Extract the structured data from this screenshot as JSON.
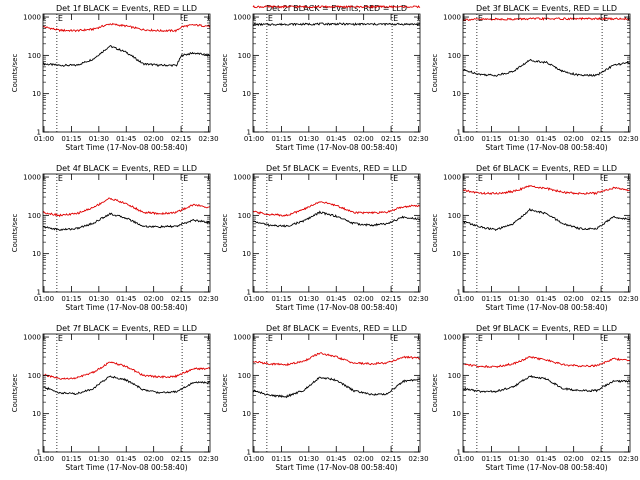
{
  "colors": {
    "events": "#000000",
    "lld": "#e00000",
    "axis": "#000000"
  },
  "chart_data": [
    {
      "type": "line",
      "title": "Det 1f BLACK = Events, RED = LLD",
      "xlabel": "Start Time (17-Nov-08 00:58:40)",
      "ylabel": "Counts/sec",
      "x_ticks": [
        "01:00",
        "01:15",
        "01:30",
        "01:45",
        "02:00",
        "02:15",
        "02:30"
      ],
      "y_ticks": [
        "1",
        "10",
        "100",
        "1000"
      ],
      "xlim": [
        0,
        100
      ],
      "ylim": [
        1,
        1200
      ],
      "yscale": "log",
      "markers": [
        {
          "label": "E",
          "x": 8.3
        },
        {
          "label": "E",
          "x": 83.3
        }
      ],
      "series": [
        {
          "color": "#000000",
          "x": [
            0,
            10,
            20,
            30,
            40,
            50,
            60,
            70,
            80,
            83,
            90,
            100
          ],
          "y": [
            60,
            55,
            55,
            80,
            175,
            120,
            60,
            55,
            55,
            100,
            115,
            100
          ]
        },
        {
          "color": "#e00000",
          "x": [
            0,
            10,
            20,
            30,
            40,
            50,
            60,
            70,
            80,
            83,
            90,
            100
          ],
          "y": [
            560,
            450,
            440,
            480,
            660,
            580,
            470,
            440,
            440,
            560,
            620,
            580
          ]
        }
      ]
    },
    {
      "type": "line",
      "title": "Det 2f BLACK = Events, RED = LLD",
      "xlabel": "Start Time (17-Nov-08 00:58:40)",
      "ylabel": "Counts/sec",
      "x_ticks": [
        "01:00",
        "01:15",
        "01:30",
        "01:45",
        "02:00",
        "02:15",
        "02:30"
      ],
      "y_ticks": [
        "1",
        "10",
        "100",
        "1000"
      ],
      "xlim": [
        0,
        100
      ],
      "ylim": [
        1,
        1200
      ],
      "yscale": "log",
      "markers": [
        {
          "label": "E",
          "x": 8.3
        },
        {
          "label": "E",
          "x": 83.3
        }
      ],
      "series": [
        {
          "color": "#000000",
          "x": [
            0,
            10,
            20,
            30,
            40,
            50,
            60,
            70,
            80,
            90,
            100
          ],
          "y": [
            640,
            640,
            650,
            650,
            660,
            660,
            650,
            650,
            650,
            650,
            650
          ]
        },
        {
          "color": "#e00000",
          "x": [
            0,
            10,
            20,
            30,
            40,
            50,
            60,
            70,
            80,
            90,
            100
          ],
          "y": [
            1850,
            1850,
            1850,
            1850,
            1850,
            1850,
            1850,
            1850,
            1850,
            1850,
            1850
          ]
        }
      ]
    },
    {
      "type": "line",
      "title": "Det 3f BLACK = Events, RED = LLD",
      "xlabel": "Start Time (17-Nov-08 00:58:40)",
      "ylabel": "Counts/sec",
      "x_ticks": [
        "01:00",
        "01:15",
        "01:30",
        "01:45",
        "02:00",
        "02:15",
        "02:30"
      ],
      "y_ticks": [
        "1",
        "10",
        "100",
        "1000"
      ],
      "xlim": [
        0,
        100
      ],
      "ylim": [
        1,
        1200
      ],
      "yscale": "log",
      "markers": [
        {
          "label": "E",
          "x": 8.3
        },
        {
          "label": "E",
          "x": 83.3
        }
      ],
      "series": [
        {
          "color": "#000000",
          "x": [
            0,
            10,
            20,
            30,
            40,
            50,
            60,
            70,
            80,
            90,
            100
          ],
          "y": [
            42,
            32,
            30,
            38,
            75,
            65,
            38,
            30,
            30,
            55,
            65
          ]
        },
        {
          "color": "#e00000",
          "x": [
            0,
            10,
            20,
            30,
            40,
            50,
            60,
            70,
            80,
            90,
            100
          ],
          "y": [
            860,
            870,
            880,
            880,
            900,
            900,
            900,
            900,
            900,
            900,
            900
          ]
        }
      ]
    },
    {
      "type": "line",
      "title": "Det 4f BLACK = Events, RED = LLD",
      "xlabel": "Start Time (17-Nov-08 00:58:40)",
      "ylabel": "Counts/sec",
      "x_ticks": [
        "01:00",
        "01:15",
        "01:30",
        "01:45",
        "02:00",
        "02:15",
        "02:30"
      ],
      "y_ticks": [
        "1",
        "10",
        "100",
        "1000"
      ],
      "xlim": [
        0,
        100
      ],
      "ylim": [
        1,
        1200
      ],
      "yscale": "log",
      "markers": [
        {
          "label": "E",
          "x": 8.3
        },
        {
          "label": "E",
          "x": 83.3
        }
      ],
      "series": [
        {
          "color": "#000000",
          "x": [
            0,
            10,
            20,
            30,
            40,
            50,
            60,
            70,
            80,
            90,
            100
          ],
          "y": [
            50,
            42,
            45,
            62,
            110,
            85,
            52,
            50,
            52,
            75,
            65
          ]
        },
        {
          "color": "#e00000",
          "x": [
            0,
            10,
            20,
            30,
            40,
            50,
            60,
            70,
            80,
            90,
            100
          ],
          "y": [
            120,
            100,
            110,
            160,
            280,
            200,
            120,
            110,
            120,
            190,
            160
          ]
        }
      ]
    },
    {
      "type": "line",
      "title": "Det 5f BLACK = Events, RED = LLD",
      "xlabel": "Start Time (17-Nov-08 00:58:40)",
      "ylabel": "Counts/sec",
      "x_ticks": [
        "01:00",
        "01:15",
        "01:30",
        "01:45",
        "02:00",
        "02:15",
        "02:30"
      ],
      "y_ticks": [
        "1",
        "10",
        "100",
        "1000"
      ],
      "xlim": [
        0,
        100
      ],
      "ylim": [
        1,
        1200
      ],
      "yscale": "log",
      "markers": [
        {
          "label": "E",
          "x": 8.3
        },
        {
          "label": "E",
          "x": 83.3
        }
      ],
      "series": [
        {
          "color": "#000000",
          "x": [
            0,
            10,
            20,
            30,
            40,
            50,
            60,
            70,
            80,
            90,
            100
          ],
          "y": [
            70,
            55,
            52,
            70,
            120,
            95,
            62,
            55,
            60,
            90,
            80
          ]
        },
        {
          "color": "#e00000",
          "x": [
            0,
            10,
            20,
            30,
            40,
            50,
            60,
            70,
            80,
            90,
            100
          ],
          "y": [
            125,
            105,
            100,
            140,
            230,
            180,
            120,
            115,
            120,
            170,
            180
          ]
        }
      ]
    },
    {
      "type": "line",
      "title": "Det 6f BLACK = Events, RED = LLD",
      "xlabel": "Start Time (17-Nov-08 00:58:40)",
      "ylabel": "Counts/sec",
      "x_ticks": [
        "01:00",
        "01:15",
        "01:30",
        "01:45",
        "02:00",
        "02:15",
        "02:30"
      ],
      "y_ticks": [
        "1",
        "10",
        "100",
        "1000"
      ],
      "xlim": [
        0,
        100
      ],
      "ylim": [
        1,
        1200
      ],
      "yscale": "log",
      "markers": [
        {
          "label": "E",
          "x": 8.3
        },
        {
          "label": "E",
          "x": 83.3
        }
      ],
      "series": [
        {
          "color": "#000000",
          "x": [
            0,
            10,
            20,
            30,
            40,
            50,
            60,
            70,
            80,
            90,
            100
          ],
          "y": [
            70,
            50,
            42,
            60,
            140,
            110,
            60,
            45,
            45,
            90,
            80
          ]
        },
        {
          "color": "#e00000",
          "x": [
            0,
            10,
            20,
            30,
            40,
            50,
            60,
            70,
            80,
            90,
            100
          ],
          "y": [
            450,
            380,
            370,
            420,
            580,
            500,
            400,
            370,
            380,
            520,
            450
          ]
        }
      ]
    },
    {
      "type": "line",
      "title": "Det 7f BLACK = Events, RED = LLD",
      "xlabel": "Start Time (17-Nov-08 00:58:40)",
      "ylabel": "Counts/sec",
      "x_ticks": [
        "01:00",
        "01:15",
        "01:30",
        "01:45",
        "02:00",
        "02:15",
        "02:30"
      ],
      "y_ticks": [
        "1",
        "10",
        "100",
        "1000"
      ],
      "xlim": [
        0,
        100
      ],
      "ylim": [
        1,
        1200
      ],
      "yscale": "log",
      "markers": [
        {
          "label": "E",
          "x": 8.3
        },
        {
          "label": "E",
          "x": 83.3
        }
      ],
      "series": [
        {
          "color": "#000000",
          "x": [
            0,
            10,
            20,
            30,
            40,
            50,
            60,
            70,
            80,
            90,
            100
          ],
          "y": [
            50,
            35,
            33,
            45,
            95,
            75,
            42,
            35,
            38,
            65,
            65
          ]
        },
        {
          "color": "#e00000",
          "x": [
            0,
            10,
            20,
            30,
            40,
            50,
            60,
            70,
            80,
            90,
            100
          ],
          "y": [
            105,
            80,
            85,
            120,
            220,
            170,
            100,
            90,
            95,
            150,
            150
          ]
        }
      ]
    },
    {
      "type": "line",
      "title": "Det 8f BLACK = Events, RED = LLD",
      "xlabel": "Start Time (17-Nov-08 00:58:40)",
      "ylabel": "Counts/sec",
      "x_ticks": [
        "01:00",
        "01:15",
        "01:30",
        "01:45",
        "02:00",
        "02:15",
        "02:30"
      ],
      "y_ticks": [
        "1",
        "10",
        "100",
        "1000"
      ],
      "xlim": [
        0,
        100
      ],
      "ylim": [
        1,
        1200
      ],
      "yscale": "log",
      "markers": [
        {
          "label": "E",
          "x": 8.3
        },
        {
          "label": "E",
          "x": 83.3
        }
      ],
      "series": [
        {
          "color": "#000000",
          "x": [
            0,
            10,
            20,
            30,
            40,
            50,
            60,
            70,
            80,
            90,
            100
          ],
          "y": [
            40,
            30,
            28,
            40,
            90,
            75,
            40,
            32,
            32,
            70,
            80
          ]
        },
        {
          "color": "#e00000",
          "x": [
            0,
            10,
            20,
            30,
            40,
            50,
            60,
            70,
            80,
            90,
            100
          ],
          "y": [
            230,
            200,
            190,
            230,
            380,
            300,
            210,
            200,
            210,
            300,
            280
          ]
        }
      ]
    },
    {
      "type": "line",
      "title": "Det 9f BLACK = Events, RED = LLD",
      "xlabel": "Start Time (17-Nov-08 00:58:40)",
      "ylabel": "Counts/sec",
      "x_ticks": [
        "01:00",
        "01:15",
        "01:30",
        "01:45",
        "02:00",
        "02:15",
        "02:30"
      ],
      "y_ticks": [
        "1",
        "10",
        "100",
        "1000"
      ],
      "xlim": [
        0,
        100
      ],
      "ylim": [
        1,
        1200
      ],
      "yscale": "log",
      "markers": [
        {
          "label": "E",
          "x": 8.3
        },
        {
          "label": "E",
          "x": 83.3
        }
      ],
      "series": [
        {
          "color": "#000000",
          "x": [
            0,
            10,
            20,
            30,
            40,
            50,
            60,
            70,
            80,
            90,
            100
          ],
          "y": [
            45,
            38,
            38,
            50,
            95,
            80,
            45,
            40,
            40,
            70,
            70
          ]
        },
        {
          "color": "#e00000",
          "x": [
            0,
            10,
            20,
            30,
            40,
            50,
            60,
            70,
            80,
            90,
            100
          ],
          "y": [
            200,
            170,
            170,
            200,
            300,
            250,
            190,
            175,
            180,
            270,
            240
          ]
        }
      ]
    }
  ]
}
